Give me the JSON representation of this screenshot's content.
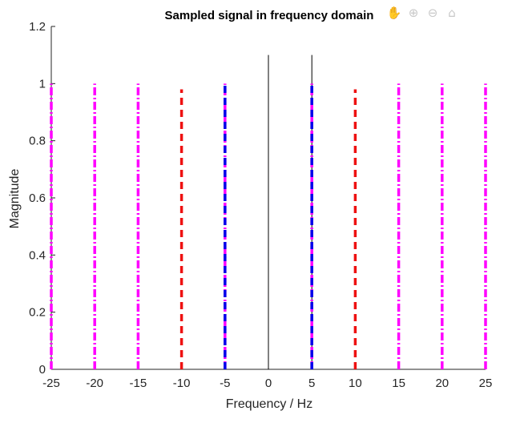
{
  "chart_data": {
    "type": "stem",
    "title": "Sampled signal in frequency domain",
    "xlabel": "Frequency / Hz",
    "ylabel": "Magnitude",
    "xlim": [
      -25,
      25
    ],
    "ylim": [
      0,
      1.2
    ],
    "xticks": [
      "-25",
      "-20",
      "-15",
      "-10",
      "-5",
      "0",
      "5",
      "10",
      "15",
      "20",
      "25"
    ],
    "yticks": [
      "0",
      "0.2",
      "0.4",
      "0.6",
      "0.8",
      "1",
      "1.2"
    ],
    "grid": false,
    "legend": "none",
    "series": [
      {
        "color": "#000000",
        "style": "solid",
        "x": [
          0,
          5
        ],
        "y": [
          1.1,
          1.1
        ]
      },
      {
        "color": "#ff00ff",
        "style": "dash-dot",
        "x": [
          -25,
          -20,
          -15,
          -5,
          5,
          15,
          20,
          25
        ],
        "y": [
          1,
          1,
          1,
          1,
          1,
          1,
          1,
          1
        ]
      },
      {
        "color": "#ee1111",
        "style": "dashed",
        "x": [
          -10,
          -5,
          5,
          10
        ],
        "y": [
          0.98,
          1,
          1,
          0.98
        ]
      },
      {
        "color": "#0000ee",
        "style": "dashed",
        "x": [
          -5,
          5
        ],
        "y": [
          1,
          1
        ]
      }
    ]
  },
  "toolbar": {
    "icons": [
      "pan-icon",
      "zoom-in-icon",
      "zoom-out-icon",
      "home-icon"
    ]
  }
}
